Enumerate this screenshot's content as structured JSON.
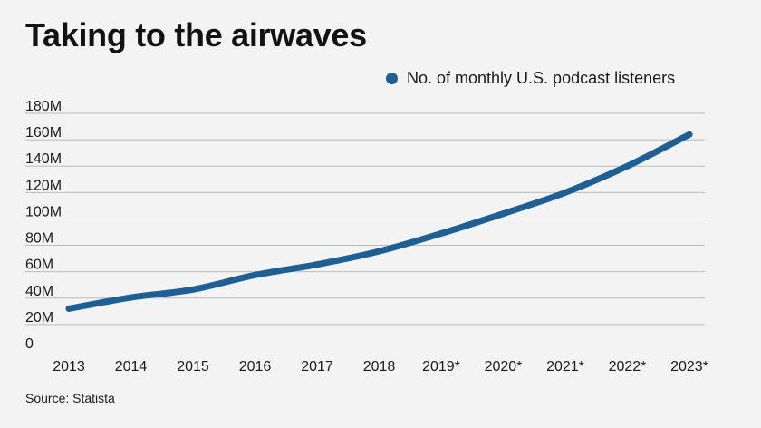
{
  "chart_data": {
    "type": "line",
    "title": "Taking to the airwaves",
    "categories": [
      "2013",
      "2014",
      "2015",
      "2016",
      "2017",
      "2018",
      "2019*",
      "2020*",
      "2021*",
      "2022*",
      "2023*"
    ],
    "series": [
      {
        "name": "No. of monthly U.S. podcast listeners",
        "values": [
          32,
          40.5,
          46.5,
          57.5,
          65.5,
          75.5,
          89,
          104,
          120,
          140,
          164
        ],
        "color": "#1f5f94"
      }
    ],
    "y_ticks": [
      "0",
      "20M",
      "40M",
      "60M",
      "80M",
      "100M",
      "120M",
      "140M",
      "160M",
      "180M"
    ],
    "y_tick_values": [
      0,
      20,
      40,
      60,
      80,
      100,
      120,
      140,
      160,
      180
    ],
    "ylim": [
      0,
      180
    ],
    "grid": true,
    "legend_position": "top-right",
    "xlabel": "",
    "ylabel": ""
  },
  "source": "Source: Statista"
}
